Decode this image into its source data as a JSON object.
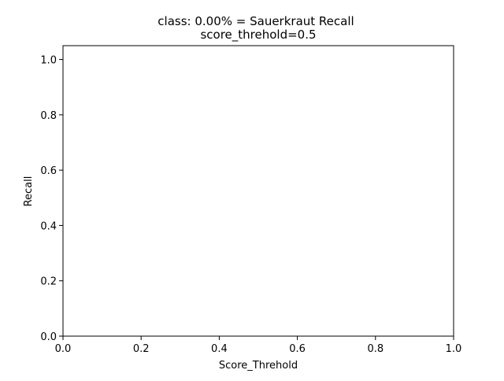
{
  "chart_data": {
    "type": "line",
    "title": [
      "class: 0.00% = Sauerkraut Recall",
      "score_threhold=0.5"
    ],
    "xlabel": "Score_Threhold",
    "ylabel": "Recall",
    "xlim": [
      0.0,
      1.0
    ],
    "ylim": [
      0.0,
      1.05
    ],
    "xticks": [
      "0.0",
      "0.2",
      "0.4",
      "0.6",
      "0.8",
      "1.0"
    ],
    "yticks": [
      "0.0",
      "0.2",
      "0.4",
      "0.6",
      "0.8",
      "1.0"
    ],
    "grid": false,
    "series": []
  }
}
